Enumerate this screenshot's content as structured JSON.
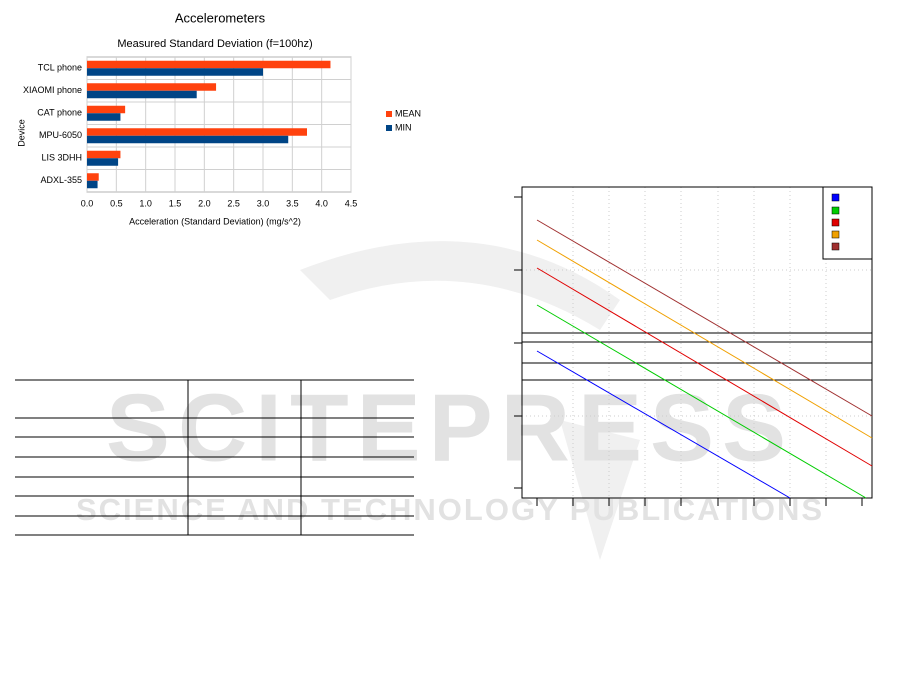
{
  "watermark": {
    "title": "SCITEPRESS",
    "subtitle": "SCIENCE AND TECHNOLOGY PUBLICATIONS"
  },
  "chart_data": {
    "type": "hbar",
    "title": "Accelerometers",
    "subtitle": "Measured Standard Deviation (f=100hz)",
    "x_label": "Acceleration (Standard Deviation) (mg/s^2)",
    "y_label": "Device",
    "categories": [
      "TCL phone",
      "XIAOMI phone",
      "CAT phone",
      "MPU-6050",
      "LIS 3DHH",
      "ADXL-355"
    ],
    "series": [
      {
        "name": "MEAN",
        "color": "#ff420e",
        "values": [
          4.15,
          2.2,
          0.65,
          3.75,
          0.57,
          0.2
        ]
      },
      {
        "name": "MIN",
        "color": "#004586",
        "values": [
          3.0,
          1.87,
          0.57,
          3.43,
          0.53,
          0.18
        ]
      }
    ],
    "xlim": [
      0,
      4.5
    ],
    "xticks": [
      {
        "value": 0,
        "label": "0.0"
      },
      0.5,
      {
        "value": 1,
        "label": "1.0"
      },
      1.5,
      {
        "value": 2,
        "label": "2.0"
      },
      2.5,
      {
        "value": 3,
        "label": "3.0"
      },
      3.5,
      {
        "value": 4,
        "label": "4.0"
      },
      4.5
    ],
    "grid": true,
    "legend": "right"
  }
}
